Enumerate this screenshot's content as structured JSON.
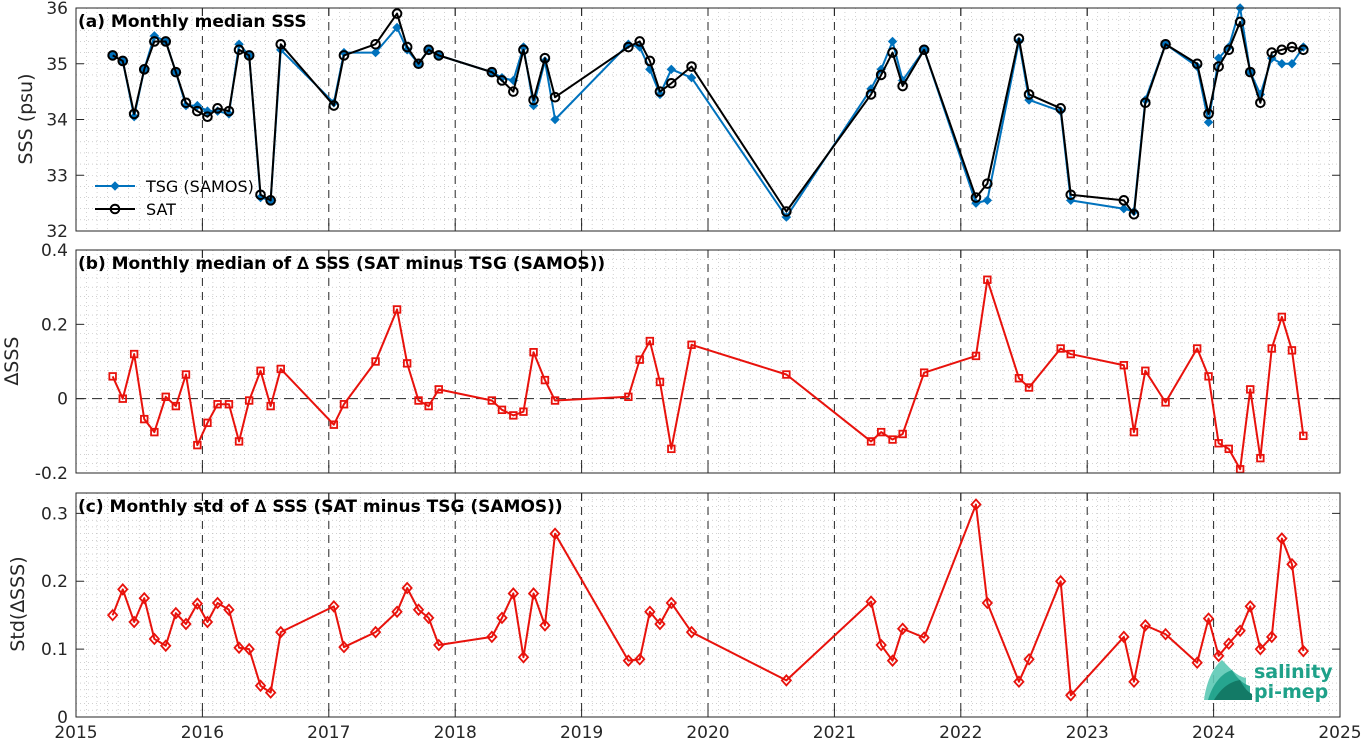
{
  "chart_data": [
    {
      "id": "a",
      "type": "line",
      "title": "(a) Monthly median SSS",
      "ylabel": "SSS (psu)",
      "xlim": [
        2015,
        2025
      ],
      "ylim": [
        32,
        36
      ],
      "yticks": [
        "32",
        "33",
        "34",
        "35",
        "36"
      ],
      "grid": true,
      "legend_position": "left",
      "colors": {
        "tsg": "#0072BD",
        "sat": "#000000"
      },
      "x": [
        2015.29,
        2015.37,
        2015.46,
        2015.54,
        2015.62,
        2015.71,
        2015.79,
        2015.87,
        2015.96,
        2016.04,
        2016.12,
        2016.21,
        2016.29,
        2016.37,
        2016.46,
        2016.54,
        2016.62,
        2017.04,
        2017.12,
        2017.37,
        2017.54,
        2017.62,
        2017.71,
        2017.79,
        2017.87,
        2018.29,
        2018.37,
        2018.46,
        2018.54,
        2018.62,
        2018.71,
        2018.79,
        2019.37,
        2019.46,
        2019.54,
        2019.62,
        2019.71,
        2019.87,
        2020.62,
        2021.29,
        2021.37,
        2021.46,
        2021.54,
        2021.71,
        2022.12,
        2022.21,
        2022.46,
        2022.54,
        2022.79,
        2022.87,
        2023.29,
        2023.37,
        2023.46,
        2023.62,
        2023.87,
        2023.96,
        2024.04,
        2024.12,
        2024.21,
        2024.29,
        2024.37,
        2024.46,
        2024.54,
        2024.62,
        2024.71
      ],
      "series": [
        {
          "name": "TSG (SAMOS)",
          "marker": "diamond",
          "values": [
            35.15,
            35.05,
            34.05,
            34.9,
            35.5,
            35.4,
            34.85,
            34.25,
            34.25,
            34.15,
            34.15,
            34.1,
            35.35,
            35.15,
            32.6,
            32.55,
            35.25,
            34.3,
            35.2,
            35.2,
            35.65,
            35.25,
            35,
            35.25,
            35.15,
            34.85,
            34.75,
            34.7,
            35.3,
            34.25,
            35.05,
            34,
            35.35,
            35.3,
            34.9,
            34.45,
            34.9,
            34.75,
            32.25,
            34.55,
            34.9,
            35.4,
            34.7,
            35.25,
            32.5,
            32.55,
            35.4,
            34.35,
            34.15,
            32.55,
            32.4,
            32.35,
            34.35,
            35.35,
            34.95,
            33.95,
            35.1,
            35.3,
            36,
            34.85,
            34.45,
            35.1,
            35,
            35,
            35.3
          ]
        },
        {
          "name": "SAT",
          "marker": "circle",
          "values": [
            35.15,
            35.05,
            34.1,
            34.9,
            35.4,
            35.4,
            34.85,
            34.3,
            34.15,
            34.05,
            34.2,
            34.15,
            35.25,
            35.15,
            32.65,
            32.55,
            35.35,
            34.25,
            35.15,
            35.35,
            35.9,
            35.3,
            35,
            35.25,
            35.15,
            34.85,
            34.7,
            34.5,
            35.25,
            34.35,
            35.1,
            34.4,
            35.3,
            35.4,
            35.05,
            34.5,
            34.65,
            34.95,
            32.35,
            34.45,
            34.8,
            35.2,
            34.6,
            35.25,
            32.6,
            32.85,
            35.45,
            34.45,
            34.2,
            32.65,
            32.55,
            32.3,
            34.3,
            35.35,
            35,
            34.1,
            34.95,
            35.25,
            35.75,
            34.85,
            34.3,
            35.2,
            35.25,
            35.3,
            35.25
          ]
        }
      ]
    },
    {
      "id": "b",
      "type": "line",
      "title": "(b) Monthly median of ∆ SSS (SAT minus TSG (SAMOS))",
      "ylabel": "∆SSS",
      "xlim": [
        2015,
        2025
      ],
      "ylim": [
        -0.2,
        0.4
      ],
      "yticks": [
        "-0.2",
        "0",
        "0.2",
        "0.4"
      ],
      "grid": true,
      "color": "#E8120C",
      "marker": "square",
      "x": [
        2015.29,
        2015.37,
        2015.46,
        2015.54,
        2015.62,
        2015.71,
        2015.79,
        2015.87,
        2015.96,
        2016.04,
        2016.12,
        2016.21,
        2016.29,
        2016.37,
        2016.46,
        2016.54,
        2016.62,
        2017.04,
        2017.12,
        2017.37,
        2017.54,
        2017.62,
        2017.71,
        2017.79,
        2017.87,
        2018.29,
        2018.37,
        2018.46,
        2018.54,
        2018.62,
        2018.71,
        2018.79,
        2019.37,
        2019.46,
        2019.54,
        2019.62,
        2019.71,
        2019.87,
        2020.62,
        2021.29,
        2021.37,
        2021.46,
        2021.54,
        2021.71,
        2022.12,
        2022.21,
        2022.46,
        2022.54,
        2022.79,
        2022.87,
        2023.29,
        2023.37,
        2023.46,
        2023.62,
        2023.87,
        2023.96,
        2024.04,
        2024.12,
        2024.21,
        2024.29,
        2024.37,
        2024.46,
        2024.54,
        2024.62,
        2024.71
      ],
      "values": [
        0.06,
        0,
        0.12,
        -0.055,
        -0.09,
        0.005,
        -0.02,
        0.065,
        -0.125,
        -0.065,
        -0.015,
        -0.015,
        -0.115,
        -0.005,
        0.075,
        -0.02,
        0.08,
        -0.07,
        -0.015,
        0.1,
        0.24,
        0.095,
        -0.005,
        -0.02,
        0.025,
        -0.005,
        -0.03,
        -0.045,
        -0.035,
        0.125,
        0.05,
        -0.005,
        0.005,
        0.105,
        0.155,
        0.045,
        -0.135,
        0.145,
        0.065,
        -0.115,
        -0.09,
        -0.11,
        -0.095,
        0.07,
        0.115,
        0.32,
        0.055,
        0.03,
        0.135,
        0.12,
        0.09,
        -0.09,
        0.075,
        -0.01,
        0.135,
        0.06,
        -0.12,
        -0.135,
        -0.19,
        0.025,
        -0.16,
        0.135,
        0.22,
        0.13,
        -0.1
      ]
    },
    {
      "id": "c",
      "type": "line",
      "title": "(c) Monthly std of ∆ SSS (SAT minus TSG (SAMOS))",
      "ylabel": "Std(∆SSS)",
      "xlabel": "",
      "xlim": [
        2015,
        2025
      ],
      "ylim": [
        0,
        0.33
      ],
      "yticks": [
        "0",
        "0.1",
        "0.2",
        "0.3"
      ],
      "xticks": [
        "2015",
        "2016",
        "2017",
        "2018",
        "2019",
        "2020",
        "2021",
        "2022",
        "2023",
        "2024",
        "2025"
      ],
      "grid": true,
      "color": "#E8120C",
      "marker": "diamond",
      "x": [
        2015.29,
        2015.37,
        2015.46,
        2015.54,
        2015.62,
        2015.71,
        2015.79,
        2015.87,
        2015.96,
        2016.04,
        2016.12,
        2016.21,
        2016.29,
        2016.37,
        2016.46,
        2016.54,
        2016.62,
        2017.04,
        2017.12,
        2017.37,
        2017.54,
        2017.62,
        2017.71,
        2017.79,
        2017.87,
        2018.29,
        2018.37,
        2018.46,
        2018.54,
        2018.62,
        2018.71,
        2018.79,
        2019.37,
        2019.46,
        2019.54,
        2019.62,
        2019.71,
        2019.87,
        2020.62,
        2021.29,
        2021.37,
        2021.46,
        2021.54,
        2021.71,
        2022.12,
        2022.21,
        2022.46,
        2022.54,
        2022.79,
        2022.87,
        2023.29,
        2023.37,
        2023.46,
        2023.62,
        2023.87,
        2023.96,
        2024.04,
        2024.12,
        2024.21,
        2024.29,
        2024.37,
        2024.46,
        2024.54,
        2024.62,
        2024.71
      ],
      "values": [
        0.15,
        0.188,
        0.14,
        0.175,
        0.115,
        0.105,
        0.153,
        0.137,
        0.167,
        0.14,
        0.168,
        0.158,
        0.102,
        0.1,
        0.046,
        0.036,
        0.125,
        0.163,
        0.103,
        0.125,
        0.155,
        0.19,
        0.158,
        0.146,
        0.106,
        0.118,
        0.146,
        0.182,
        0.088,
        0.182,
        0.135,
        0.27,
        0.083,
        0.085,
        0.155,
        0.137,
        0.168,
        0.125,
        0.054,
        0.17,
        0.106,
        0.083,
        0.13,
        0.117,
        0.313,
        0.168,
        0.052,
        0.085,
        0.2,
        0.032,
        0.118,
        0.052,
        0.135,
        0.122,
        0.08,
        0.145,
        0.09,
        0.108,
        0.127,
        0.163,
        0.1,
        0.118,
        0.263,
        0.225,
        0.097
      ]
    }
  ],
  "logo": {
    "line1": "salinity",
    "line2": "pi-mep",
    "color": "#1FA189"
  }
}
